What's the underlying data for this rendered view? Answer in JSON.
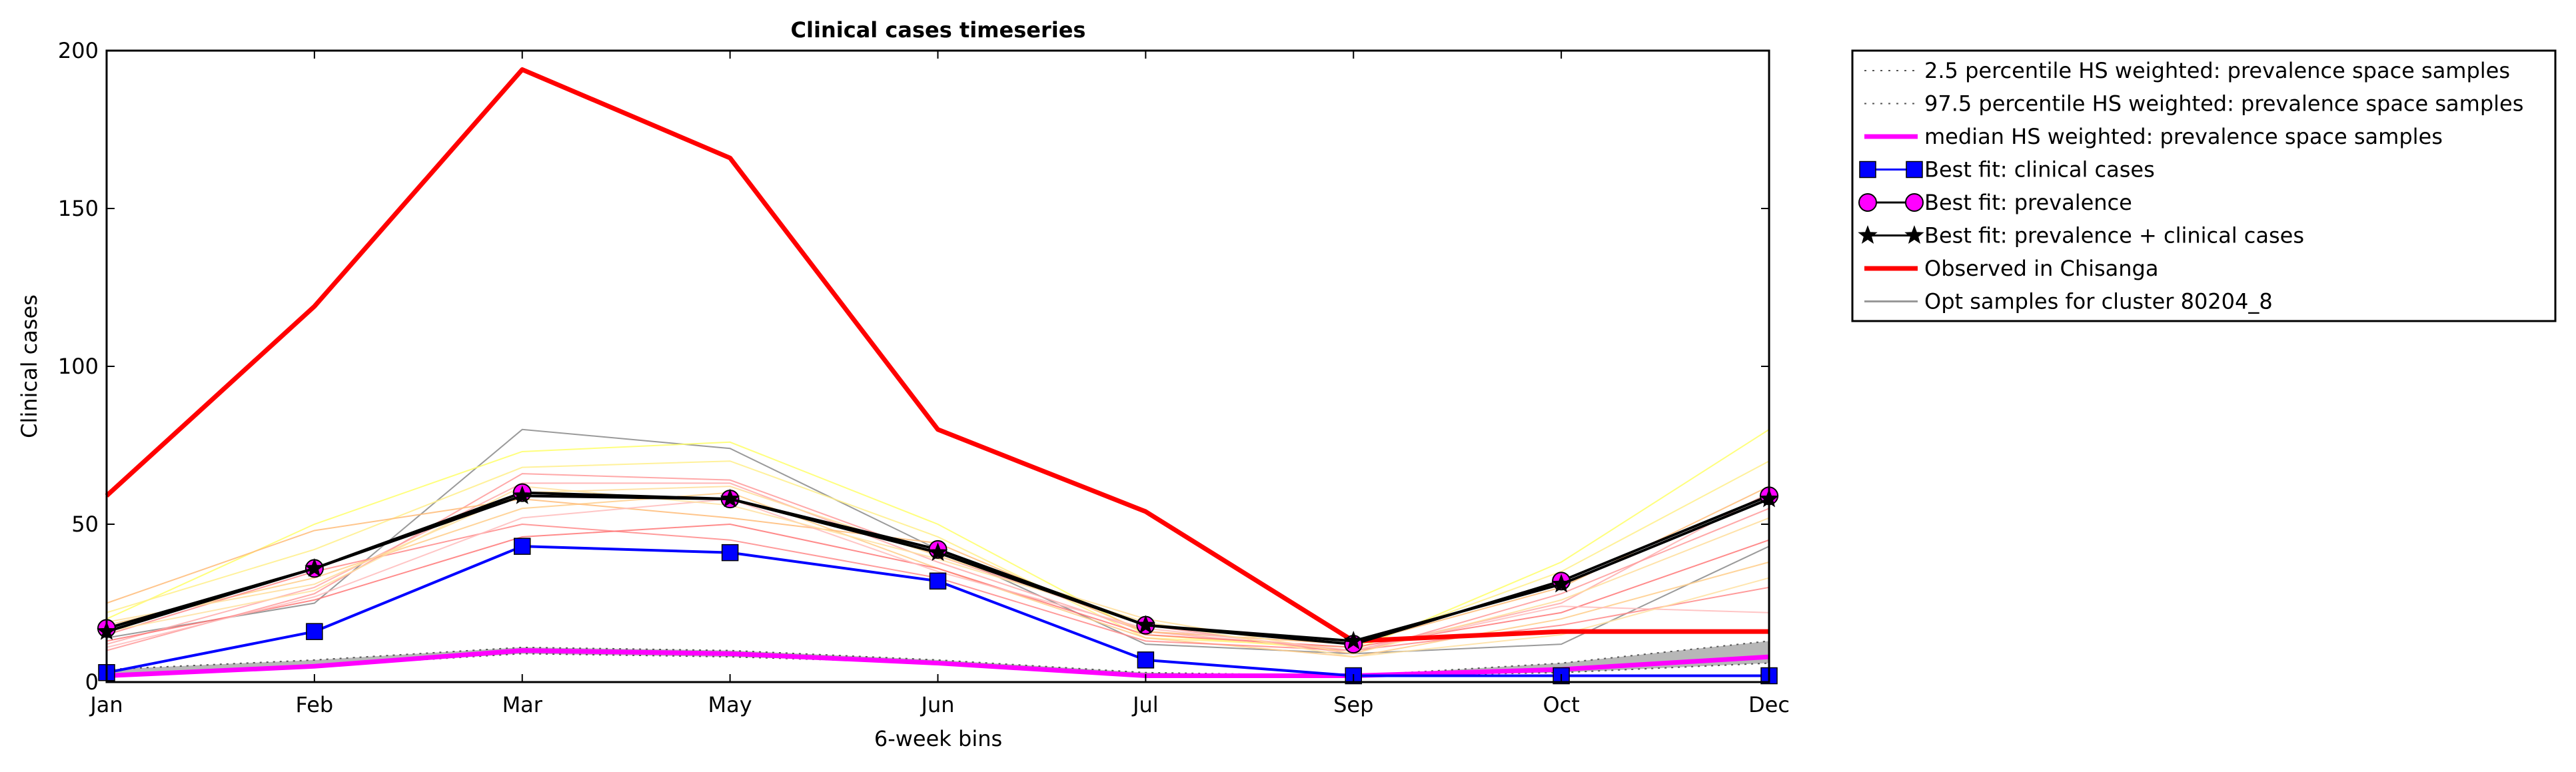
{
  "chart_data": {
    "type": "line",
    "title": "Clinical cases timeseries",
    "xlabel": "6-week bins",
    "ylabel": "Clinical cases",
    "categories": [
      "Jan",
      "Feb",
      "Mar",
      "May",
      "Jun",
      "Jul",
      "Sep",
      "Oct",
      "Dec"
    ],
    "ylim": [
      0,
      200
    ],
    "yticks": [
      0,
      50,
      100,
      150,
      200
    ],
    "grid": false,
    "legend_position": "outside-top-right",
    "legend": [
      {
        "label": "2.5 percentile HS weighted: prevalence space samples",
        "color": "#555555",
        "style": "dotted",
        "marker": "none"
      },
      {
        "label": "97.5 percentile HS weighted: prevalence space samples",
        "color": "#555555",
        "style": "dotted",
        "marker": "none"
      },
      {
        "label": "median HS weighted: prevalence space samples",
        "color": "#ff00ff",
        "style": "solid",
        "marker": "none"
      },
      {
        "label": "Best fit: clinical cases",
        "color": "#0000ff",
        "style": "solid",
        "marker": "square"
      },
      {
        "label": "Best fit: prevalence",
        "color": "#000000",
        "style": "solid",
        "marker": "circle",
        "marker_fill": "#ff00ff"
      },
      {
        "label": "Best fit: prevalence + clinical cases",
        "color": "#000000",
        "style": "solid",
        "marker": "star"
      },
      {
        "label": "Observed in Chisanga",
        "color": "#ff0000",
        "style": "solid",
        "marker": "none"
      },
      {
        "label": "Opt samples for cluster 80204_8",
        "color": "#999999",
        "style": "solid",
        "marker": "none"
      }
    ],
    "band": {
      "lower": [
        2,
        5,
        9,
        8,
        6,
        2,
        2,
        3,
        6
      ],
      "upper": [
        4,
        7,
        11,
        10,
        7,
        3,
        2,
        6,
        13
      ],
      "fill": "#aaaaaa"
    },
    "series": [
      {
        "name": "2.5 percentile HS weighted: prevalence space samples",
        "values": [
          2,
          5,
          9,
          8,
          6,
          2,
          2,
          3,
          6
        ],
        "color": "#555555",
        "style": "dotted"
      },
      {
        "name": "97.5 percentile HS weighted: prevalence space samples",
        "values": [
          4,
          7,
          11,
          10,
          7,
          3,
          2,
          6,
          13
        ],
        "color": "#555555",
        "style": "dotted"
      },
      {
        "name": "median HS weighted: prevalence space samples",
        "values": [
          2,
          5,
          10,
          9,
          6,
          2,
          2,
          4,
          8
        ],
        "color": "#ff00ff",
        "style": "solid"
      },
      {
        "name": "Best fit: clinical cases",
        "values": [
          3,
          16,
          43,
          41,
          32,
          7,
          2,
          2,
          2
        ],
        "color": "#0000ff",
        "marker": "square"
      },
      {
        "name": "Best fit: prevalence",
        "values": [
          17,
          36,
          60,
          58,
          42,
          18,
          12,
          32,
          59
        ],
        "color": "#000000",
        "marker": "circle"
      },
      {
        "name": "Best fit: prevalence + clinical cases",
        "values": [
          16,
          36,
          59,
          58,
          41,
          18,
          13,
          31,
          58
        ],
        "color": "#000000",
        "marker": "star"
      },
      {
        "name": "Observed in Chisanga",
        "values": [
          59,
          119,
          194,
          166,
          80,
          54,
          13,
          16,
          16
        ],
        "color": "#ff0000",
        "style": "solid"
      }
    ],
    "samples": [
      {
        "values": [
          14,
          25,
          80,
          74,
          42,
          12,
          9,
          12,
          43
        ],
        "color": "#888888"
      },
      {
        "values": [
          20,
          50,
          73,
          76,
          50,
          15,
          10,
          38,
          80
        ],
        "color": "#ffff66"
      },
      {
        "values": [
          22,
          42,
          68,
          70,
          46,
          14,
          11,
          35,
          70
        ],
        "color": "#ffee88"
      },
      {
        "values": [
          12,
          30,
          63,
          63,
          38,
          16,
          10,
          25,
          60
        ],
        "color": "#ffaaaa"
      },
      {
        "values": [
          10,
          28,
          66,
          64,
          40,
          18,
          9,
          28,
          55
        ],
        "color": "#ff9999"
      },
      {
        "values": [
          18,
          33,
          55,
          60,
          36,
          14,
          8,
          20,
          38
        ],
        "color": "#ffcc88"
      },
      {
        "values": [
          15,
          35,
          50,
          45,
          33,
          13,
          10,
          18,
          30
        ],
        "color": "#ff8888"
      },
      {
        "values": [
          25,
          48,
          58,
          52,
          44,
          16,
          12,
          30,
          62
        ],
        "color": "#ffbb77"
      },
      {
        "values": [
          13,
          26,
          46,
          50,
          36,
          15,
          11,
          22,
          45
        ],
        "color": "#ff7777"
      },
      {
        "values": [
          19,
          31,
          60,
          62,
          40,
          20,
          9,
          26,
          52
        ],
        "color": "#ffdd99"
      },
      {
        "values": [
          11,
          27,
          52,
          58,
          35,
          17,
          10,
          24,
          22
        ],
        "color": "#ffbbbb"
      },
      {
        "values": [
          16,
          29,
          62,
          56,
          39,
          19,
          8,
          15,
          33
        ],
        "color": "#ffe0a0"
      }
    ]
  }
}
